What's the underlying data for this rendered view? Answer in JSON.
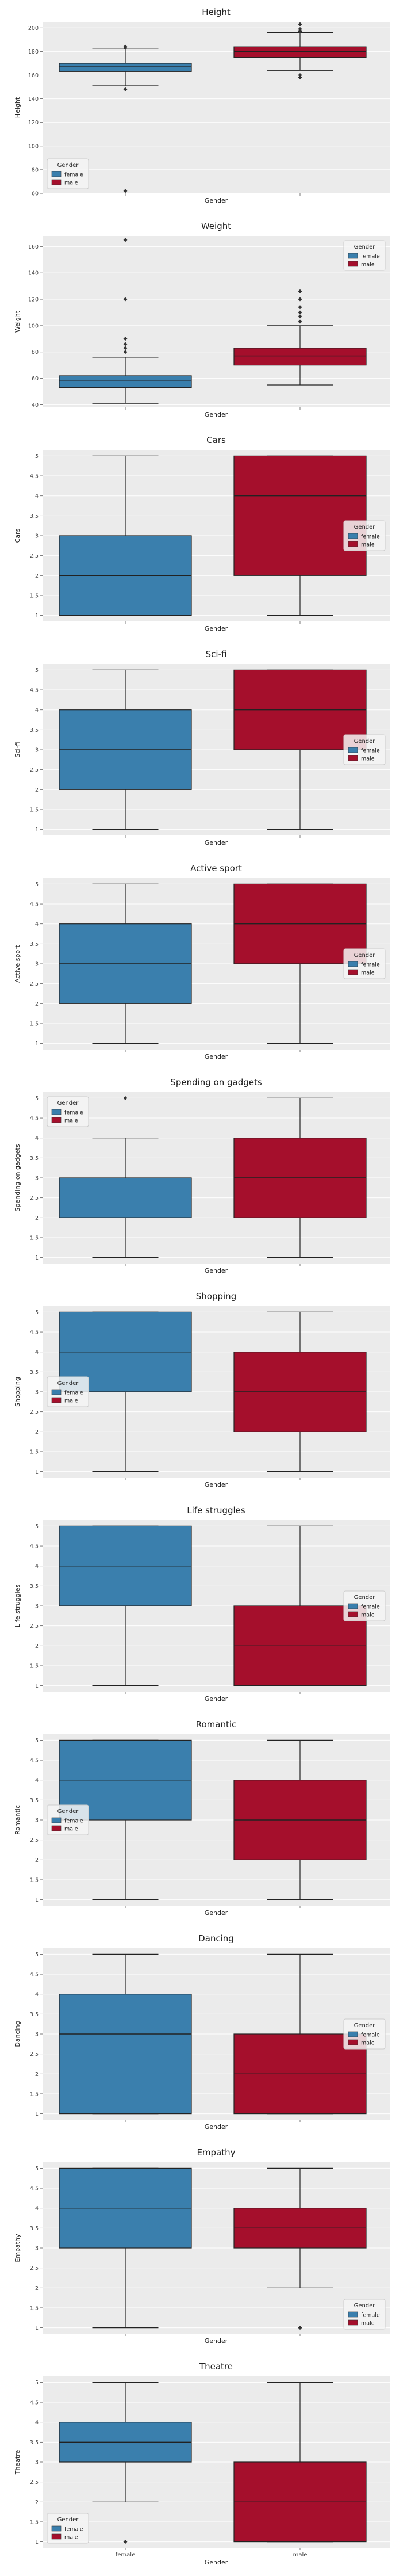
{
  "colors": {
    "female": "#3a7fad",
    "male": "#a50f2c",
    "panel": "#ebebeb",
    "grid": "#ffffff",
    "whisker": "#222222"
  },
  "chart_data": [
    {
      "type": "box",
      "title": "Height",
      "xlabel": "Gender",
      "ylabel": "Height",
      "ylim": [
        60,
        205
      ],
      "yticks": [
        60,
        80,
        100,
        120,
        140,
        160,
        180,
        200
      ],
      "categories": [
        "female",
        "male"
      ],
      "legend": {
        "title": "Gender",
        "placement": "lower-left"
      },
      "boxes": [
        {
          "name": "female",
          "whislo": 151,
          "q1": 163,
          "med": 167,
          "q3": 170,
          "whishi": 182,
          "fliers": [
            148,
            183,
            184,
            62
          ]
        },
        {
          "name": "male",
          "whislo": 164,
          "q1": 175,
          "med": 180,
          "q3": 184,
          "whishi": 196,
          "fliers": [
            158,
            160,
            197,
            199,
            203
          ]
        }
      ]
    },
    {
      "type": "box",
      "title": "Weight",
      "xlabel": "Gender",
      "ylabel": "Weight",
      "ylim": [
        38,
        168
      ],
      "yticks": [
        40,
        60,
        80,
        100,
        120,
        140,
        160
      ],
      "categories": [
        "female",
        "male"
      ],
      "legend": {
        "title": "Gender",
        "placement": "upper-right"
      },
      "boxes": [
        {
          "name": "female",
          "whislo": 41,
          "q1": 53,
          "med": 58,
          "q3": 62,
          "whishi": 76,
          "fliers": [
            80,
            83,
            86,
            90,
            120,
            165
          ]
        },
        {
          "name": "male",
          "whislo": 55,
          "q1": 70,
          "med": 77,
          "q3": 83,
          "whishi": 100,
          "fliers": [
            103,
            107,
            110,
            114,
            120,
            126
          ]
        }
      ]
    },
    {
      "type": "box",
      "title": "Cars",
      "xlabel": "Gender",
      "ylabel": "Cars",
      "ylim": [
        0.85,
        5.15
      ],
      "yticks": [
        1.0,
        1.5,
        2.0,
        2.5,
        3.0,
        3.5,
        4.0,
        4.5,
        5.0
      ],
      "categories": [
        "female",
        "male"
      ],
      "legend": {
        "title": "Gender",
        "placement": "center-right"
      },
      "boxes": [
        {
          "name": "female",
          "whislo": 1,
          "q1": 1,
          "med": 2,
          "q3": 3,
          "whishi": 5,
          "fliers": []
        },
        {
          "name": "male",
          "whislo": 1,
          "q1": 2,
          "med": 4,
          "q3": 5,
          "whishi": 5,
          "fliers": []
        }
      ]
    },
    {
      "type": "box",
      "title": "Sci-fi",
      "xlabel": "Gender",
      "ylabel": "Sci-fi",
      "ylim": [
        0.85,
        5.15
      ],
      "yticks": [
        1.0,
        1.5,
        2.0,
        2.5,
        3.0,
        3.5,
        4.0,
        4.5,
        5.0
      ],
      "categories": [
        "female",
        "male"
      ],
      "legend": {
        "title": "Gender",
        "placement": "center-right"
      },
      "boxes": [
        {
          "name": "female",
          "whislo": 1,
          "q1": 2,
          "med": 3,
          "q3": 4,
          "whishi": 5,
          "fliers": []
        },
        {
          "name": "male",
          "whislo": 1,
          "q1": 3,
          "med": 4,
          "q3": 5,
          "whishi": 5,
          "fliers": []
        }
      ]
    },
    {
      "type": "box",
      "title": "Active sport",
      "xlabel": "Gender",
      "ylabel": "Active sport",
      "ylim": [
        0.85,
        5.15
      ],
      "yticks": [
        1.0,
        1.5,
        2.0,
        2.5,
        3.0,
        3.5,
        4.0,
        4.5,
        5.0
      ],
      "categories": [
        "female",
        "male"
      ],
      "legend": {
        "title": "Gender",
        "placement": "center-right"
      },
      "boxes": [
        {
          "name": "female",
          "whislo": 1,
          "q1": 2,
          "med": 3,
          "q3": 4,
          "whishi": 5,
          "fliers": []
        },
        {
          "name": "male",
          "whislo": 1,
          "q1": 3,
          "med": 4,
          "q3": 5,
          "whishi": 5,
          "fliers": []
        }
      ]
    },
    {
      "type": "box",
      "title": "Spending on gadgets",
      "xlabel": "Gender",
      "ylabel": "Spending on gadgets",
      "ylim": [
        0.85,
        5.15
      ],
      "yticks": [
        1.0,
        1.5,
        2.0,
        2.5,
        3.0,
        3.5,
        4.0,
        4.5,
        5.0
      ],
      "categories": [
        "female",
        "male"
      ],
      "legend": {
        "title": "Gender",
        "placement": "upper-left"
      },
      "boxes": [
        {
          "name": "female",
          "whislo": 1,
          "q1": 2,
          "med": 2,
          "q3": 3,
          "whishi": 4,
          "fliers": [
            5
          ]
        },
        {
          "name": "male",
          "whislo": 1,
          "q1": 2,
          "med": 3,
          "q3": 4,
          "whishi": 5,
          "fliers": []
        }
      ]
    },
    {
      "type": "box",
      "title": "Shopping",
      "xlabel": "Gender",
      "ylabel": "Shopping",
      "ylim": [
        0.85,
        5.15
      ],
      "yticks": [
        1.0,
        1.5,
        2.0,
        2.5,
        3.0,
        3.5,
        4.0,
        4.5,
        5.0
      ],
      "categories": [
        "female",
        "male"
      ],
      "legend": {
        "title": "Gender",
        "placement": "center-left"
      },
      "boxes": [
        {
          "name": "female",
          "whislo": 1,
          "q1": 3,
          "med": 4,
          "q3": 5,
          "whishi": 5,
          "fliers": []
        },
        {
          "name": "male",
          "whislo": 1,
          "q1": 2,
          "med": 3,
          "q3": 4,
          "whishi": 5,
          "fliers": []
        }
      ]
    },
    {
      "type": "box",
      "title": "Life struggles",
      "xlabel": "Gender",
      "ylabel": "Life struggles",
      "ylim": [
        0.85,
        5.15
      ],
      "yticks": [
        1.0,
        1.5,
        2.0,
        2.5,
        3.0,
        3.5,
        4.0,
        4.5,
        5.0
      ],
      "categories": [
        "female",
        "male"
      ],
      "legend": {
        "title": "Gender",
        "placement": "center-right"
      },
      "boxes": [
        {
          "name": "female",
          "whislo": 1,
          "q1": 3,
          "med": 4,
          "q3": 5,
          "whishi": 5,
          "fliers": []
        },
        {
          "name": "male",
          "whislo": 1,
          "q1": 1,
          "med": 2,
          "q3": 3,
          "whishi": 5,
          "fliers": []
        }
      ]
    },
    {
      "type": "box",
      "title": "Romantic",
      "xlabel": "Gender",
      "ylabel": "Romantic",
      "ylim": [
        0.85,
        5.15
      ],
      "yticks": [
        1.0,
        1.5,
        2.0,
        2.5,
        3.0,
        3.5,
        4.0,
        4.5,
        5.0
      ],
      "categories": [
        "female",
        "male"
      ],
      "legend": {
        "title": "Gender",
        "placement": "center-left"
      },
      "boxes": [
        {
          "name": "female",
          "whislo": 1,
          "q1": 3,
          "med": 4,
          "q3": 5,
          "whishi": 5,
          "fliers": []
        },
        {
          "name": "male",
          "whislo": 1,
          "q1": 2,
          "med": 3,
          "q3": 4,
          "whishi": 5,
          "fliers": []
        }
      ]
    },
    {
      "type": "box",
      "title": "Dancing",
      "xlabel": "Gender",
      "ylabel": "Dancing",
      "ylim": [
        0.85,
        5.15
      ],
      "yticks": [
        1.0,
        1.5,
        2.0,
        2.5,
        3.0,
        3.5,
        4.0,
        4.5,
        5.0
      ],
      "categories": [
        "female",
        "male"
      ],
      "legend": {
        "title": "Gender",
        "placement": "center-right"
      },
      "boxes": [
        {
          "name": "female",
          "whislo": 1,
          "q1": 1,
          "med": 3,
          "q3": 4,
          "whishi": 5,
          "fliers": []
        },
        {
          "name": "male",
          "whislo": 1,
          "q1": 1,
          "med": 2,
          "q3": 3,
          "whishi": 5,
          "fliers": []
        }
      ]
    },
    {
      "type": "box",
      "title": "Empathy",
      "xlabel": "Gender",
      "ylabel": "Empathy",
      "ylim": [
        0.85,
        5.15
      ],
      "yticks": [
        1.0,
        1.5,
        2.0,
        2.5,
        3.0,
        3.5,
        4.0,
        4.5,
        5.0
      ],
      "categories": [
        "female",
        "male"
      ],
      "legend": {
        "title": "Gender",
        "placement": "lower-right"
      },
      "boxes": [
        {
          "name": "female",
          "whislo": 1,
          "q1": 3,
          "med": 4,
          "q3": 5,
          "whishi": 5,
          "fliers": []
        },
        {
          "name": "male",
          "whislo": 2,
          "q1": 3,
          "med": 3.5,
          "q3": 4,
          "whishi": 5,
          "fliers": [
            1
          ]
        }
      ]
    },
    {
      "type": "box",
      "title": "Theatre",
      "xlabel": "Gender",
      "ylabel": "Theatre",
      "ylim": [
        0.85,
        5.15
      ],
      "yticks": [
        1.0,
        1.5,
        2.0,
        2.5,
        3.0,
        3.5,
        4.0,
        4.5,
        5.0
      ],
      "categories": [
        "female",
        "male"
      ],
      "legend": {
        "title": "Gender",
        "placement": "lower-left"
      },
      "boxes": [
        {
          "name": "female",
          "whislo": 2,
          "q1": 3,
          "med": 3.5,
          "q3": 4,
          "whishi": 5,
          "fliers": [
            1
          ]
        },
        {
          "name": "male",
          "whislo": 1,
          "q1": 1,
          "med": 2,
          "q3": 3,
          "whishi": 5,
          "fliers": []
        }
      ]
    }
  ]
}
